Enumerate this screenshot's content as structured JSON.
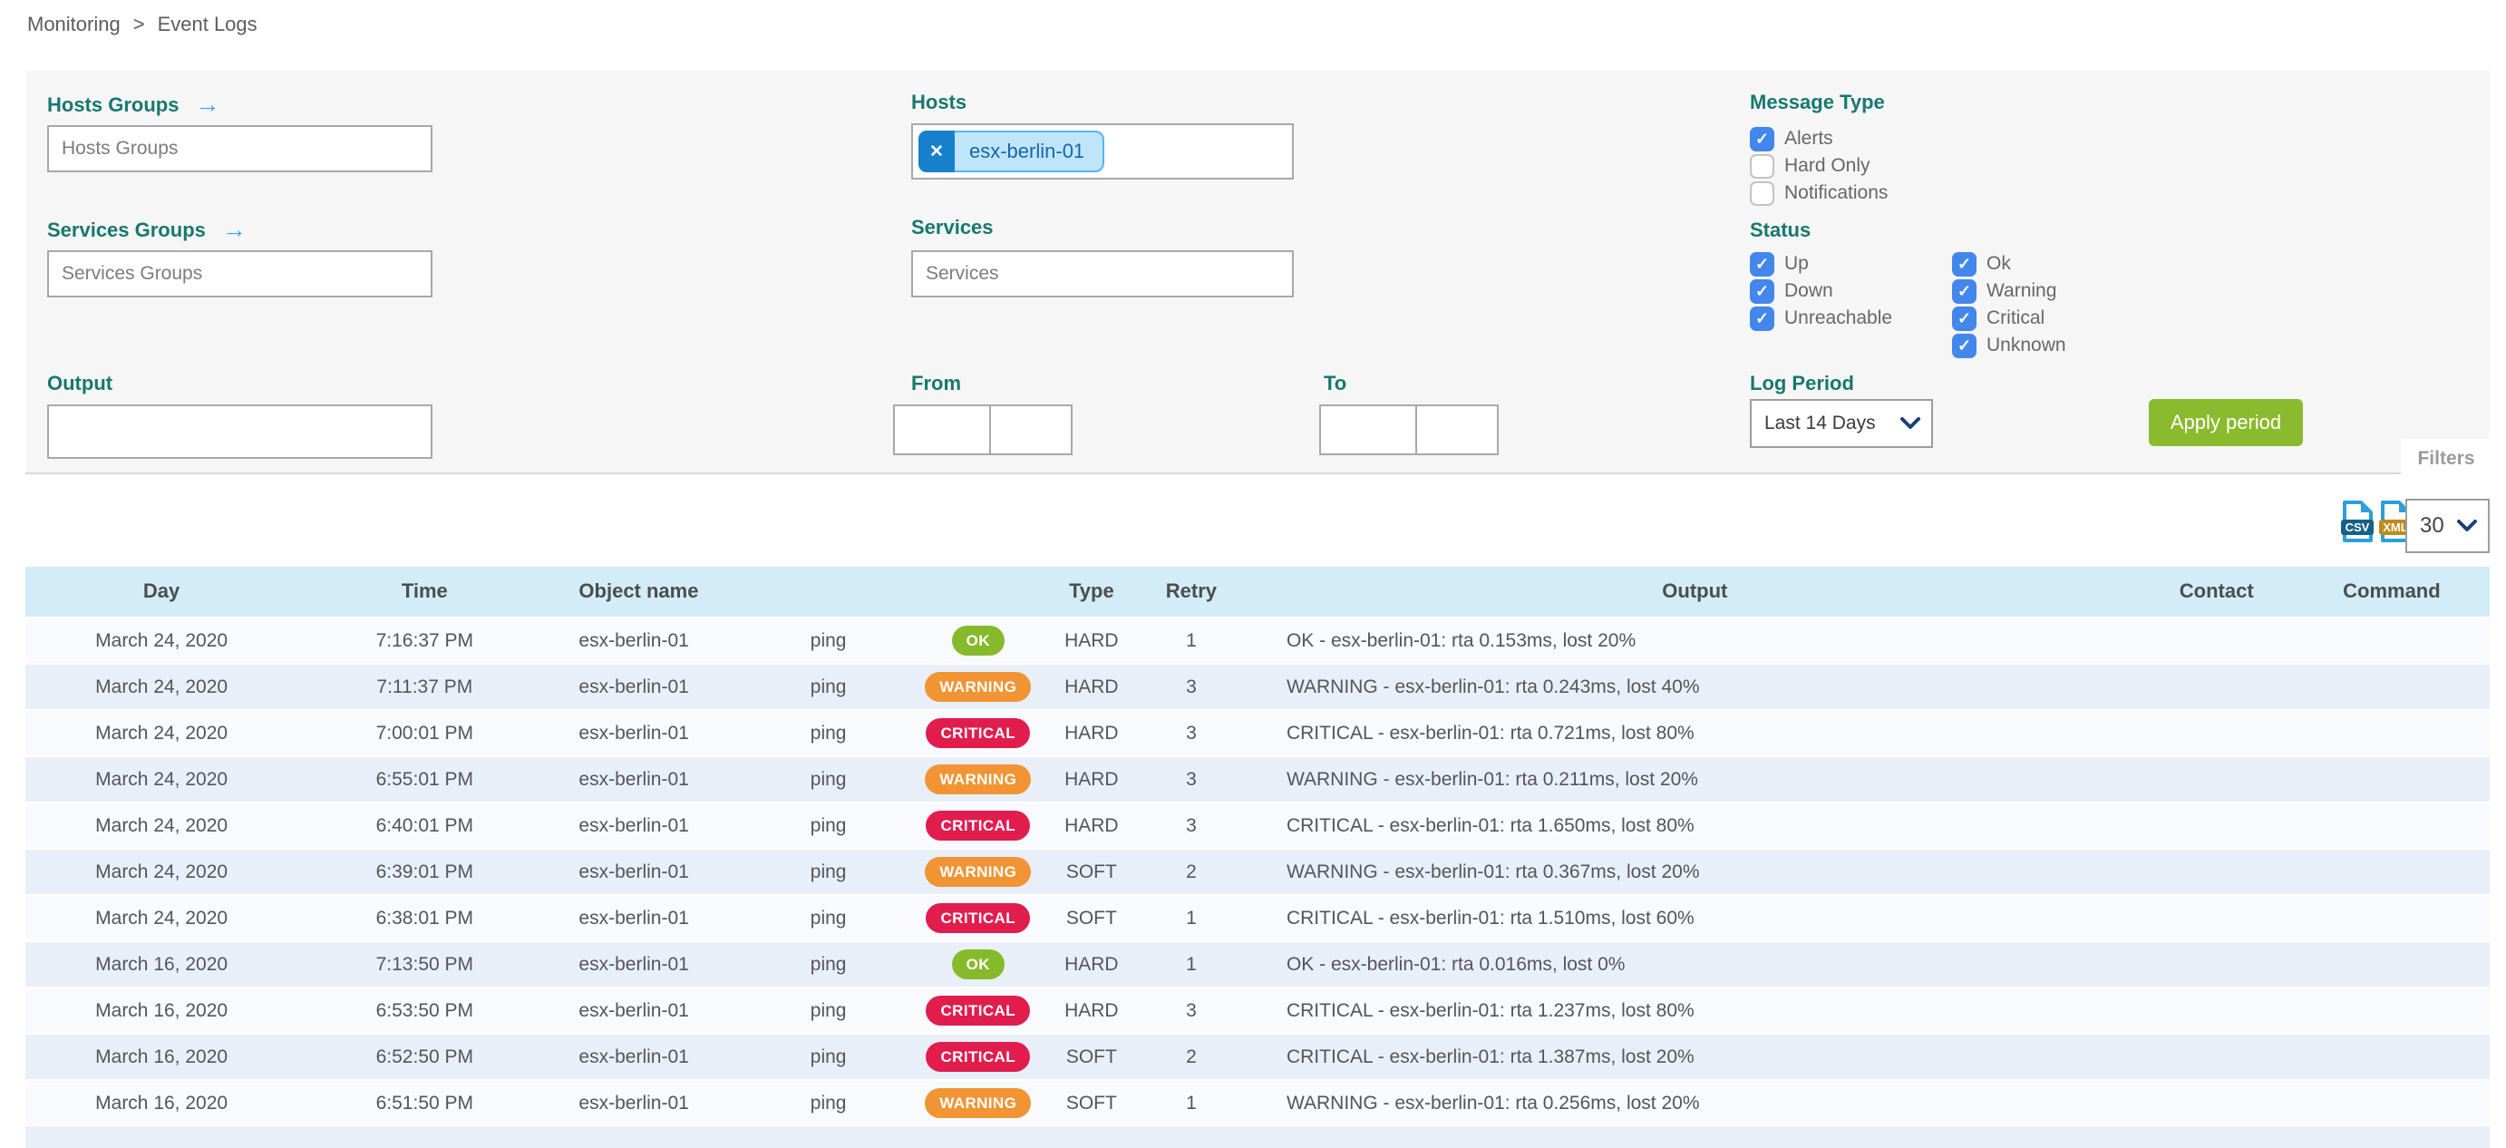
{
  "breadcrumb": {
    "section": "Monitoring",
    "separator": ">",
    "page": "Event Logs"
  },
  "panel": {
    "hosts_groups_label": "Hosts Groups",
    "hosts_groups_placeholder": "Hosts Groups",
    "services_groups_label": "Services Groups",
    "services_groups_placeholder": "Services Groups",
    "hosts_label": "Hosts",
    "hosts_selected": [
      {
        "label": "esx-berlin-01",
        "remove_glyph": "✕"
      }
    ],
    "services_label": "Services",
    "services_placeholder": "Services",
    "output_label": "Output",
    "output_value": "",
    "from_label": "From",
    "from_date_value": "",
    "from_time_value": "",
    "to_label": "To",
    "to_date_value": "",
    "to_time_value": "",
    "message_type_label": "Message Type",
    "message_type_options": [
      {
        "label": "Alerts",
        "checked": true
      },
      {
        "label": "Hard Only",
        "checked": false
      },
      {
        "label": "Notifications",
        "checked": false
      }
    ],
    "status_label": "Status",
    "status_options_col1": [
      {
        "label": "Up",
        "checked": true
      },
      {
        "label": "Down",
        "checked": true
      },
      {
        "label": "Unreachable",
        "checked": true
      }
    ],
    "status_options_col2": [
      {
        "label": "Ok",
        "checked": true
      },
      {
        "label": "Warning",
        "checked": true
      },
      {
        "label": "Critical",
        "checked": true
      },
      {
        "label": "Unknown",
        "checked": true
      }
    ],
    "log_period_label": "Log Period",
    "log_period_selected": "Last 14 Days",
    "apply_button_label": "Apply period",
    "filters_tab_label": "Filters"
  },
  "toolbar": {
    "csv_label": "CSV",
    "xml_label": "XML",
    "page_size": "30"
  },
  "table": {
    "headers": {
      "day": "Day",
      "time": "Time",
      "object": "Object name",
      "service": "",
      "status": "",
      "type": "Type",
      "retry": "Retry",
      "output": "Output",
      "contact": "Contact",
      "command": "Command"
    },
    "rows": [
      {
        "day": "March 24, 2020",
        "time": "7:16:37 PM",
        "object": "esx-berlin-01",
        "service": "ping",
        "status": "OK",
        "type": "HARD",
        "retry": "1",
        "output": "OK - esx-berlin-01: rta 0.153ms, lost 20%",
        "contact": "",
        "command": ""
      },
      {
        "day": "March 24, 2020",
        "time": "7:11:37 PM",
        "object": "esx-berlin-01",
        "service": "ping",
        "status": "WARNING",
        "type": "HARD",
        "retry": "3",
        "output": "WARNING - esx-berlin-01: rta 0.243ms, lost 40%",
        "contact": "",
        "command": ""
      },
      {
        "day": "March 24, 2020",
        "time": "7:00:01 PM",
        "object": "esx-berlin-01",
        "service": "ping",
        "status": "CRITICAL",
        "type": "HARD",
        "retry": "3",
        "output": "CRITICAL - esx-berlin-01: rta 0.721ms, lost 80%",
        "contact": "",
        "command": ""
      },
      {
        "day": "March 24, 2020",
        "time": "6:55:01 PM",
        "object": "esx-berlin-01",
        "service": "ping",
        "status": "WARNING",
        "type": "HARD",
        "retry": "3",
        "output": "WARNING - esx-berlin-01: rta 0.211ms, lost 20%",
        "contact": "",
        "command": ""
      },
      {
        "day": "March 24, 2020",
        "time": "6:40:01 PM",
        "object": "esx-berlin-01",
        "service": "ping",
        "status": "CRITICAL",
        "type": "HARD",
        "retry": "3",
        "output": "CRITICAL - esx-berlin-01: rta 1.650ms, lost 80%",
        "contact": "",
        "command": ""
      },
      {
        "day": "March 24, 2020",
        "time": "6:39:01 PM",
        "object": "esx-berlin-01",
        "service": "ping",
        "status": "WARNING",
        "type": "SOFT",
        "retry": "2",
        "output": "WARNING - esx-berlin-01: rta 0.367ms, lost 20%",
        "contact": "",
        "command": ""
      },
      {
        "day": "March 24, 2020",
        "time": "6:38:01 PM",
        "object": "esx-berlin-01",
        "service": "ping",
        "status": "CRITICAL",
        "type": "SOFT",
        "retry": "1",
        "output": "CRITICAL - esx-berlin-01: rta 1.510ms, lost 60%",
        "contact": "",
        "command": ""
      },
      {
        "day": "March 16, 2020",
        "time": "7:13:50 PM",
        "object": "esx-berlin-01",
        "service": "ping",
        "status": "OK",
        "type": "HARD",
        "retry": "1",
        "output": "OK - esx-berlin-01: rta 0.016ms, lost 0%",
        "contact": "",
        "command": ""
      },
      {
        "day": "March 16, 2020",
        "time": "6:53:50 PM",
        "object": "esx-berlin-01",
        "service": "ping",
        "status": "CRITICAL",
        "type": "HARD",
        "retry": "3",
        "output": "CRITICAL - esx-berlin-01: rta 1.237ms, lost 80%",
        "contact": "",
        "command": ""
      },
      {
        "day": "March 16, 2020",
        "time": "6:52:50 PM",
        "object": "esx-berlin-01",
        "service": "ping",
        "status": "CRITICAL",
        "type": "SOFT",
        "retry": "2",
        "output": "CRITICAL - esx-berlin-01: rta 1.387ms, lost 20%",
        "contact": "",
        "command": ""
      },
      {
        "day": "March 16, 2020",
        "time": "6:51:50 PM",
        "object": "esx-berlin-01",
        "service": "ping",
        "status": "WARNING",
        "type": "SOFT",
        "retry": "1",
        "output": "WARNING - esx-berlin-01: rta 0.256ms, lost 20%",
        "contact": "",
        "command": ""
      }
    ]
  },
  "colors": {
    "accent_teal": "#17786f",
    "arrow_blue": "#3f9ff2",
    "checkbox_blue": "#4387ec",
    "chip_remove_bg": "#1780cc",
    "chip_bg": "#bfe5fb",
    "chip_border": "#53b6f2",
    "chip_text": "#1467a8",
    "apply_green": "#8aba2e",
    "status_ok": "#86ba2b",
    "status_warning": "#f19434",
    "status_critical": "#e11d4e",
    "table_header_bg": "#d2ecf8",
    "row_odd_bg": "#f8fafd",
    "row_even_bg": "#e9eff9",
    "csv_banner": "#176087",
    "xml_banner": "#bd8c1e",
    "file_outline": "#2aa0dd"
  }
}
